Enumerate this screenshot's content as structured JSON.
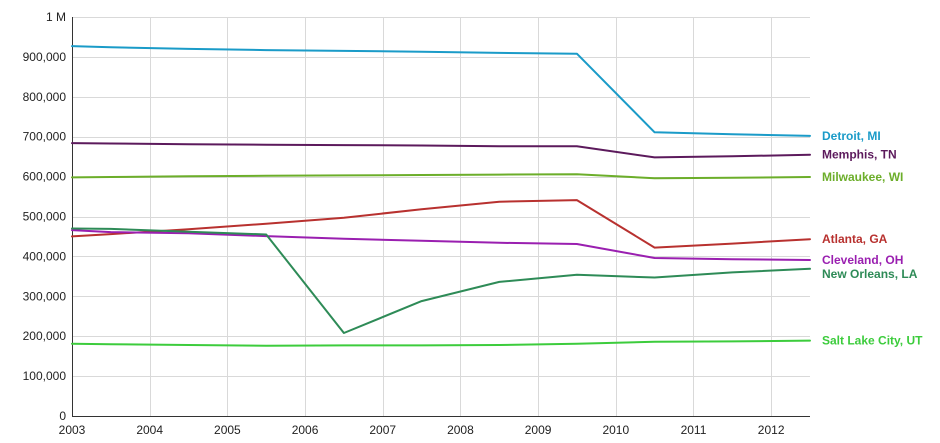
{
  "chart_data": {
    "type": "line",
    "title": "",
    "xlabel": "",
    "ylabel": "",
    "xlim": [
      2003,
      2012.5
    ],
    "ylim": [
      0,
      1000000
    ],
    "x_ticks": [
      2003,
      2004,
      2005,
      2006,
      2007,
      2008,
      2009,
      2010,
      2011,
      2012
    ],
    "x_tick_labels": [
      "2003",
      "2004",
      "2005",
      "2006",
      "2007",
      "2008",
      "2009",
      "2010",
      "2011",
      "2012"
    ],
    "y_ticks": [
      0,
      100000,
      200000,
      300000,
      400000,
      500000,
      600000,
      700000,
      800000,
      900000,
      1000000
    ],
    "y_tick_labels": [
      "0",
      "100,000",
      "200,000",
      "300,000",
      "400,000",
      "500,000",
      "600,000",
      "700,000",
      "800,000",
      "900,000",
      "1 M"
    ],
    "grid": true,
    "legend": "inline-right",
    "x": [
      2003,
      2003.5,
      2004.5,
      2005.5,
      2006.5,
      2007.5,
      2008.5,
      2009.5,
      2010.5,
      2011.5,
      2012.5
    ],
    "series": [
      {
        "name": "Detroit, MI",
        "color": "#1a9bc8",
        "values": [
          927000,
          924000,
          920000,
          917000,
          915000,
          913000,
          910000,
          908000,
          711000,
          706000,
          702000
        ]
      },
      {
        "name": "Memphis, TN",
        "color": "#5c1a5c",
        "values": [
          684000,
          683000,
          681000,
          680000,
          679000,
          678000,
          676000,
          676000,
          648000,
          651000,
          655000
        ]
      },
      {
        "name": "Milwaukee, WI",
        "color": "#6cae2a",
        "values": [
          598000,
          599000,
          601000,
          602000,
          603000,
          604000,
          605000,
          606000,
          596000,
          597000,
          599000
        ]
      },
      {
        "name": "Atlanta, GA",
        "color": "#b8312f",
        "values": [
          450000,
          456000,
          468000,
          482000,
          497000,
          518000,
          537000,
          541000,
          422000,
          432000,
          443000
        ]
      },
      {
        "name": "Cleveland, OH",
        "color": "#9a1fb0",
        "values": [
          466000,
          461000,
          458000,
          451000,
          444000,
          439000,
          434000,
          431000,
          396000,
          393000,
          391000
        ]
      },
      {
        "name": "New Orleans, LA",
        "color": "#2e8b57",
        "values": [
          470000,
          469000,
          462000,
          455000,
          208000,
          288000,
          336000,
          354000,
          347000,
          360000,
          369000
        ]
      },
      {
        "name": "Salt Lake City, UT",
        "color": "#3ccc3c",
        "values": [
          181000,
          180000,
          178000,
          176000,
          177000,
          177000,
          178000,
          181000,
          186000,
          187000,
          189000
        ]
      }
    ]
  }
}
